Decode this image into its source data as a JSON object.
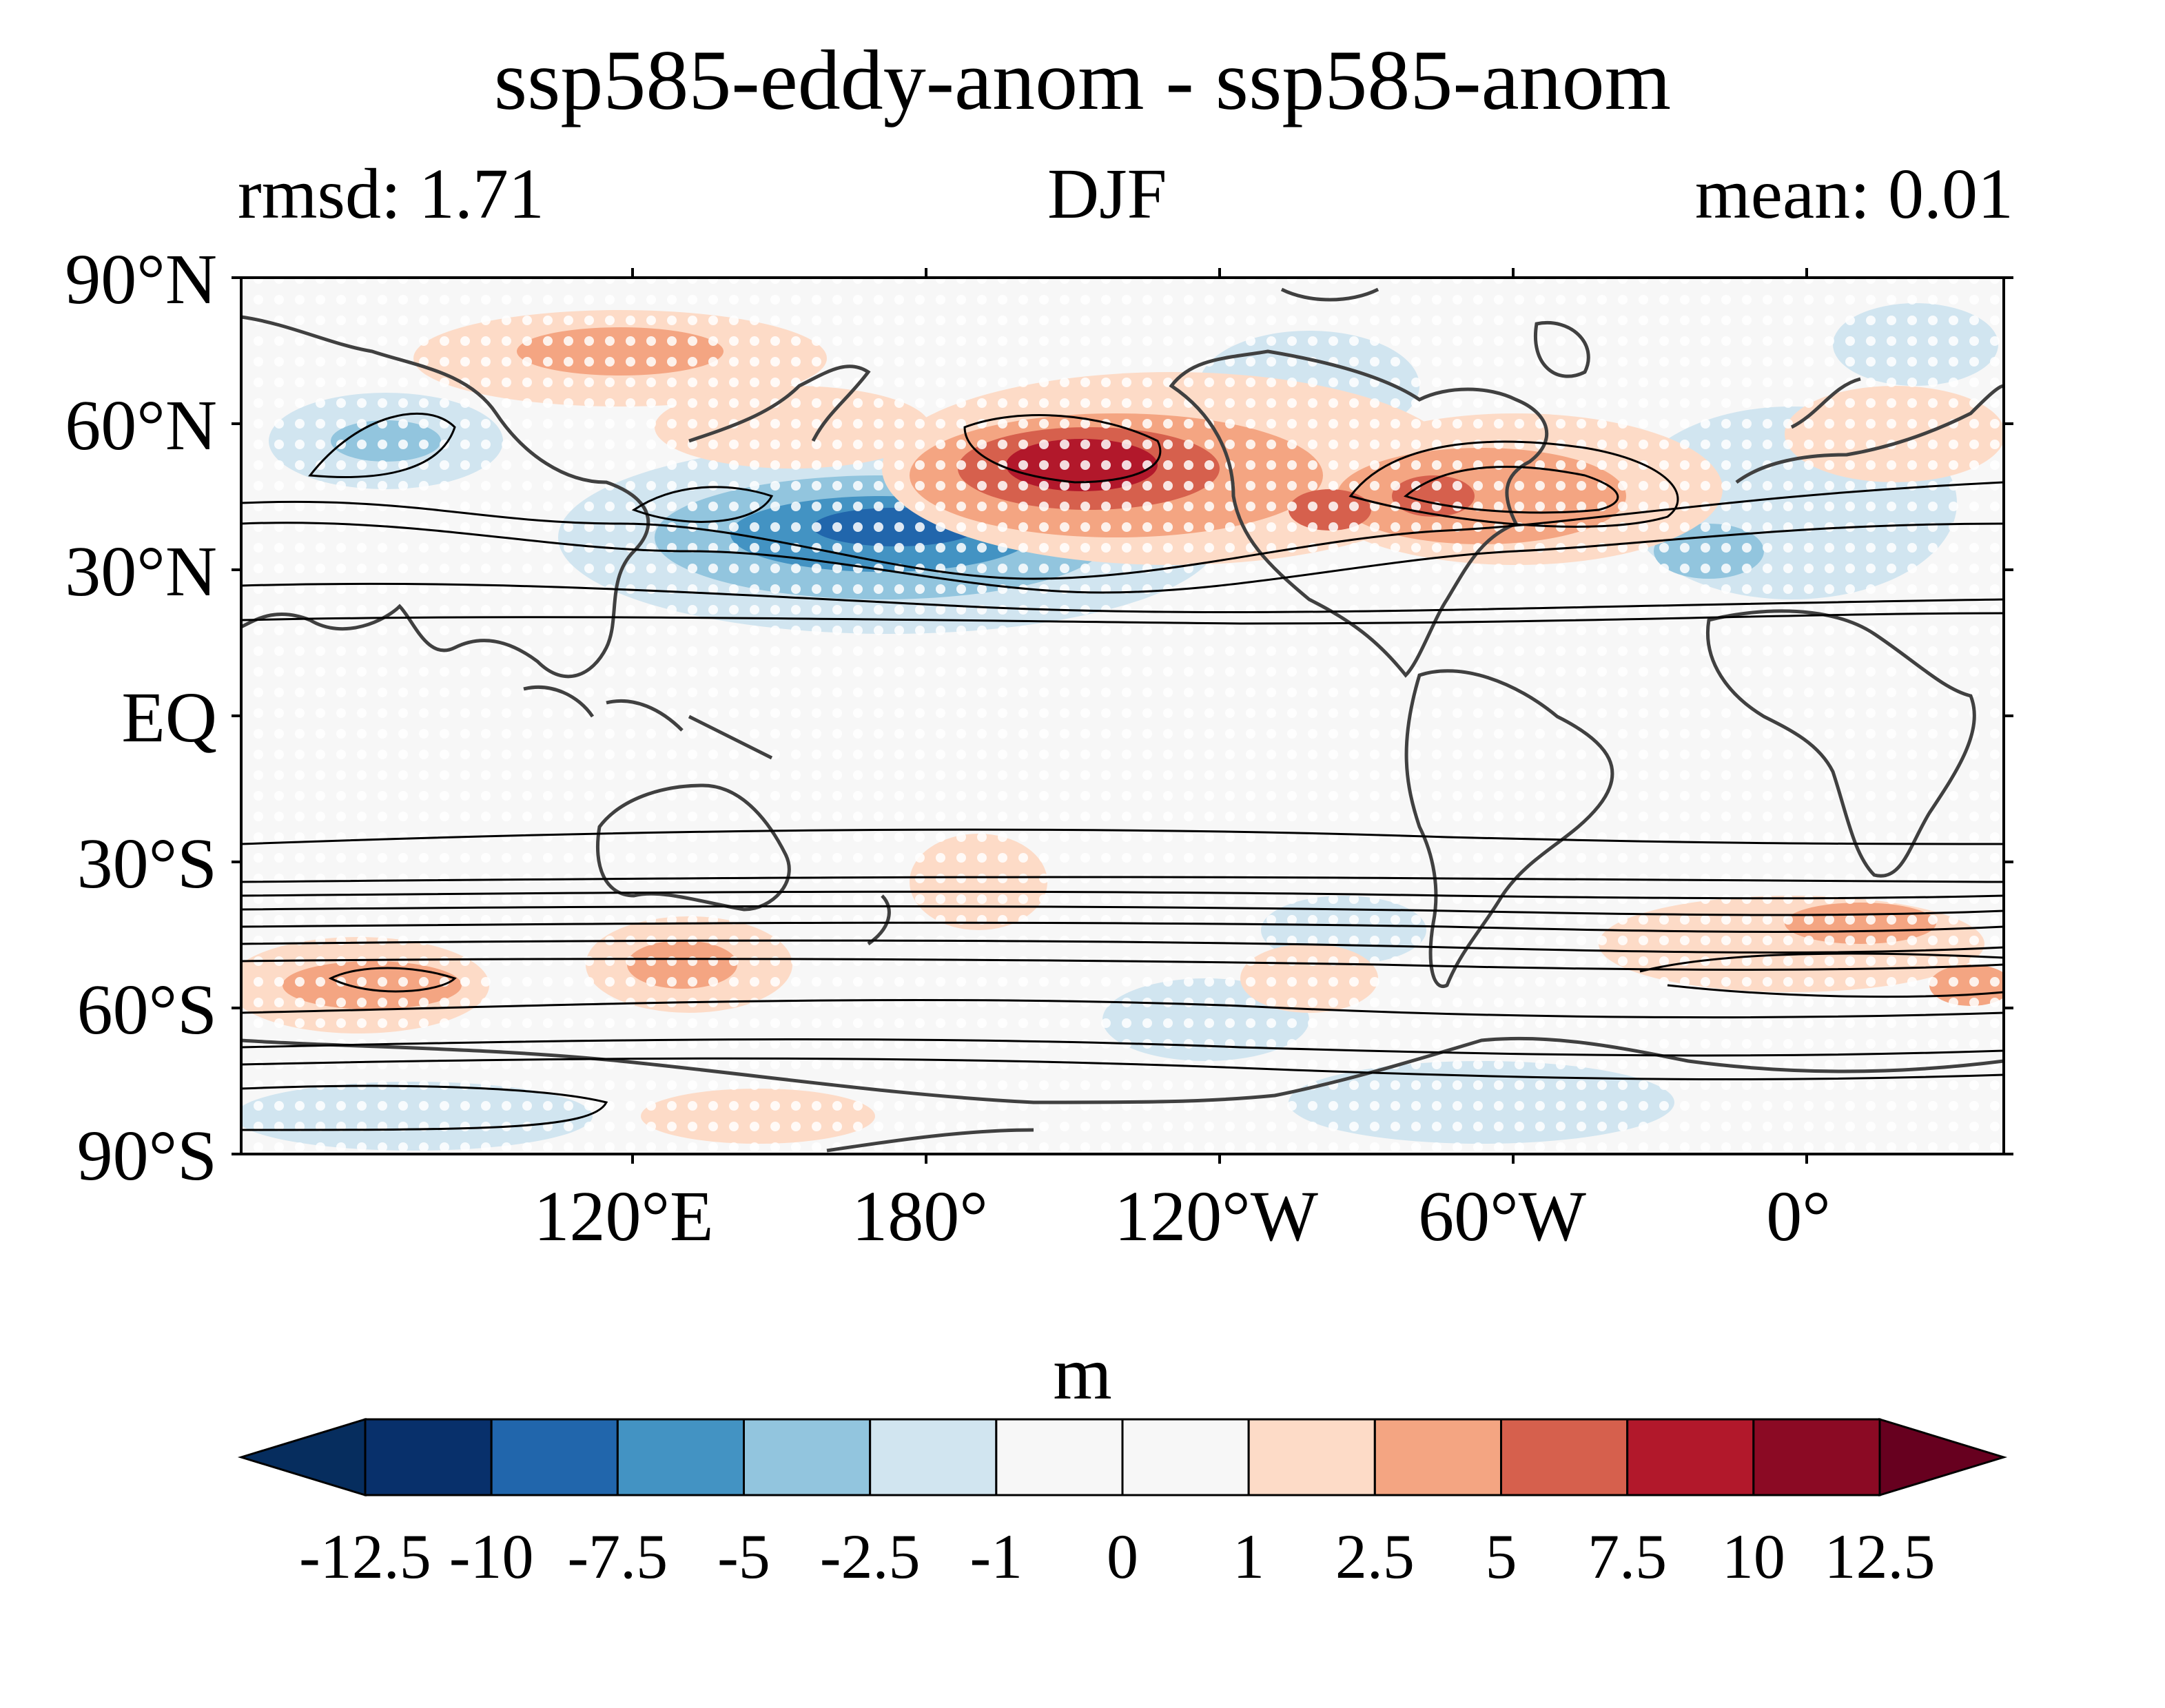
{
  "title": "ssp585-eddy-anom - ssp585-anom",
  "subtitle_left": "rmsd: 1.71",
  "subtitle_center": "DJF",
  "subtitle_right": "mean: 0.01",
  "map": {
    "projection": "equirectangular",
    "lat_labels": [
      "90°N",
      "60°N",
      "30°N",
      "EQ",
      "30°S",
      "60°S",
      "90°S"
    ],
    "lon_labels": [
      "120°E",
      "180°",
      "120°W",
      "60°W",
      "0°"
    ],
    "stippling": "white dots indicate significance",
    "contours": "black lines (climatological field)"
  },
  "colorbar": {
    "unit": "m",
    "levels": [
      "-12.5",
      "-10",
      "-7.5",
      "-5",
      "-2.5",
      "-1",
      "0",
      "1",
      "2.5",
      "5",
      "7.5",
      "10",
      "12.5"
    ],
    "colors": [
      "#062d5e",
      "#08306b",
      "#2166ac",
      "#4393c3",
      "#92c5de",
      "#d1e5f0",
      "#f7f7f7",
      "#f7f7f7",
      "#fddbc7",
      "#f4a582",
      "#d6604d",
      "#b2182b",
      "#8b0a24",
      "#67001f"
    ]
  }
}
